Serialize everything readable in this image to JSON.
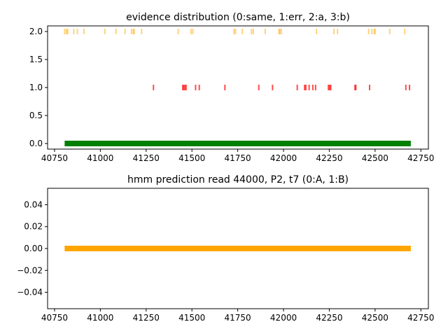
{
  "chart_data": [
    {
      "type": "scatter",
      "title": "evidence distribution (0:same, 1:err, 2:a, 3:b)",
      "xlabel": "",
      "ylabel": "",
      "xlim": [
        40712,
        42791
      ],
      "ylim": [
        -0.1,
        2.1
      ],
      "xticks": [
        40750,
        41000,
        41250,
        41500,
        41750,
        42000,
        42250,
        42500,
        42750
      ],
      "xtick_labels": [
        "40750",
        "41000",
        "41250",
        "41500",
        "41750",
        "42000",
        "42250",
        "42500",
        "42750"
      ],
      "yticks": [
        0.0,
        0.5,
        1.0,
        1.5,
        2.0
      ],
      "ytick_labels": [
        "0.0",
        "0.5",
        "1.0",
        "1.5",
        "2.0"
      ],
      "grid": false,
      "marker": "vertical-line",
      "series": [
        {
          "y": 2,
          "color": "#ffa500",
          "alpha": 0.5,
          "x": [
            40805,
            40815,
            40822,
            40855,
            40875,
            40910,
            41025,
            41085,
            41135,
            41170,
            41180,
            41185,
            41225,
            41425,
            41495,
            41505,
            41730,
            41738,
            41775,
            41825,
            41835,
            41900,
            41975,
            41980,
            41988,
            42180,
            42275,
            42295,
            42465,
            42482,
            42495,
            42500,
            42580,
            42662
          ]
        },
        {
          "y": 1,
          "color": "#ff0000",
          "alpha": 0.7,
          "x": [
            41290,
            41450,
            41455,
            41462,
            41468,
            41520,
            41540,
            41680,
            41865,
            41940,
            42075,
            42115,
            42122,
            42140,
            42160,
            42175,
            42245,
            42252,
            42258,
            42390,
            42395,
            42470,
            42668,
            42688
          ]
        },
        {
          "y": 0,
          "color": "#008000",
          "alpha": 1.0,
          "x_start": 40805,
          "x_end": 42695,
          "dense": true
        }
      ]
    },
    {
      "type": "scatter",
      "title": "hmm prediction read 44000, P2, t7 (0:A, 1:B)",
      "xlabel": "",
      "ylabel": "",
      "xlim": [
        40712,
        42791
      ],
      "ylim": [
        -0.055,
        0.055
      ],
      "xticks": [
        40750,
        41000,
        41250,
        41500,
        41750,
        42000,
        42250,
        42500,
        42750
      ],
      "xtick_labels": [
        "40750",
        "41000",
        "41250",
        "41500",
        "41750",
        "42000",
        "42250",
        "42500",
        "42750"
      ],
      "yticks": [
        -0.04,
        -0.02,
        0.0,
        0.02,
        0.04
      ],
      "ytick_labels": [
        "−0.04",
        "−0.02",
        "0.00",
        "0.02",
        "0.04"
      ],
      "grid": false,
      "marker": "vertical-line",
      "series": [
        {
          "y": 0,
          "color": "#ffa500",
          "alpha": 1.0,
          "x_start": 40805,
          "x_end": 42695,
          "dense": true
        }
      ]
    }
  ]
}
